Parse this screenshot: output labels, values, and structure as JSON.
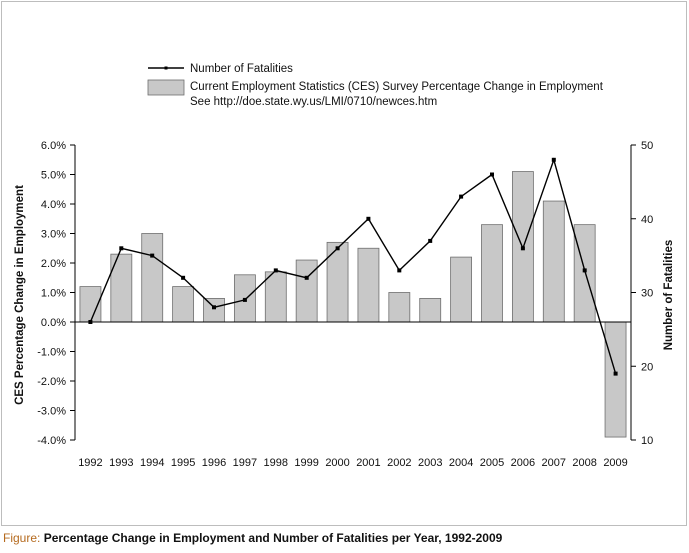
{
  "caption": {
    "lead": "Figure:",
    "text": "Percentage Change in Employment and Number of Fatalities per Year, 1992-2009"
  },
  "colors": {
    "bar_fill": "#c8c8c8",
    "bar_stroke": "#6e6e6e",
    "line": "#000000",
    "caption_lead": "#b56a1e"
  },
  "chart_data": {
    "type": "bar",
    "title": "",
    "categories": [
      "1992",
      "1993",
      "1994",
      "1995",
      "1996",
      "1997",
      "1998",
      "1999",
      "2000",
      "2001",
      "2002",
      "2003",
      "2004",
      "2005",
      "2006",
      "2007",
      "2008",
      "2009"
    ],
    "series": [
      {
        "name": "Current Employment Statistics (CES) Survey Percentage Change in Employment",
        "note": "See http://doe.state.wy.us/LMI/0710/newces.htm",
        "type": "bar",
        "axis": "left",
        "values": [
          1.2,
          2.3,
          3.0,
          1.2,
          0.8,
          1.6,
          1.7,
          2.1,
          2.7,
          2.5,
          1.0,
          0.8,
          2.2,
          3.3,
          5.1,
          4.1,
          3.3,
          -3.9
        ]
      },
      {
        "name": "Number of Fatalities",
        "type": "line",
        "axis": "right",
        "values": [
          26,
          36,
          35,
          32,
          28,
          29,
          33,
          32,
          36,
          40,
          33,
          37,
          43,
          46,
          36,
          48,
          33,
          19
        ]
      }
    ],
    "ylabel": "CES Percentage Change in Employment",
    "y2label": "Number of Fatalities",
    "ylim": [
      -4,
      6
    ],
    "yticks": [
      "6.0%",
      "5.0%",
      "4.0%",
      "3.0%",
      "2.0%",
      "1.0%",
      "0.0%",
      "-1.0%",
      "-2.0%",
      "-3.0%",
      "-4.0%"
    ],
    "y2lim": [
      10,
      50
    ],
    "y2ticks": [
      "50",
      "40",
      "30",
      "20",
      "10"
    ],
    "legend": "top",
    "grid": false
  }
}
